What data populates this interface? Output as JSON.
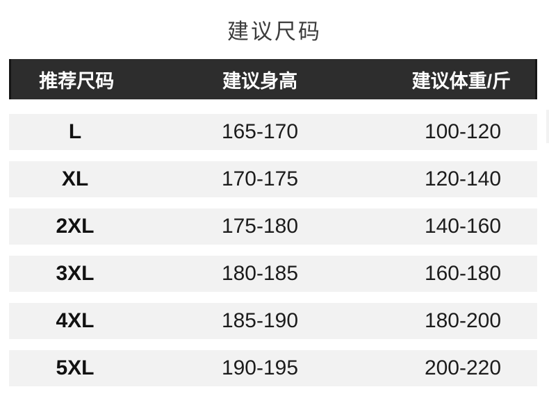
{
  "chart_data": {
    "type": "table",
    "title": "建议尺码",
    "columns": [
      "推荐尺码",
      "建议身高",
      "建议体重/斤"
    ],
    "rows": [
      [
        "L",
        "165-170",
        "100-120"
      ],
      [
        "XL",
        "170-175",
        "120-140"
      ],
      [
        "2XL",
        "175-180",
        "140-160"
      ],
      [
        "3XL",
        "180-185",
        "160-180"
      ],
      [
        "4XL",
        "185-190",
        "180-200"
      ],
      [
        "5XL",
        "190-195",
        "200-220"
      ]
    ],
    "layout": {
      "header_position": "top",
      "column_alignment": "center",
      "zebra": false
    }
  },
  "colors": {
    "header_bg": "#2d2d2d",
    "header_edge": "#161616",
    "header_text": "#ffffff",
    "row_bg": "#f2f2f2",
    "title_text": "#3c3c3c",
    "value_text": "#1c1c1c",
    "page_bg": "#ffffff"
  }
}
